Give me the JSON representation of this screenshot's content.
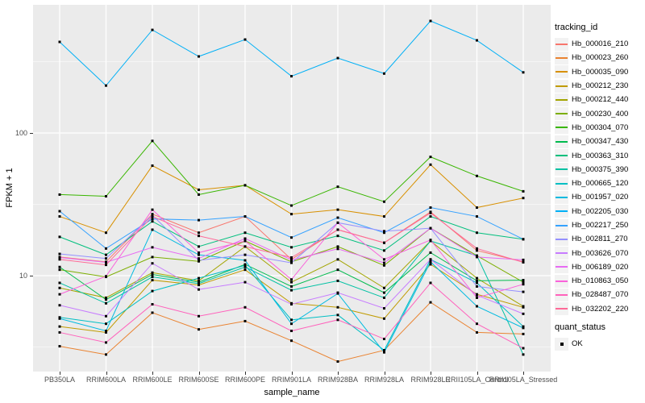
{
  "colors": {
    "panel_bg": "#EBEBEB",
    "grid": "#FFFFFF",
    "tick_label": "#4D4D4D",
    "legend_key_bg": "#F2F2F2",
    "point": "#000000"
  },
  "axis": {
    "y_title": "FPKM + 1",
    "x_title": "sample_name",
    "y_tick_labels": [
      "100",
      "10"
    ]
  },
  "legend": {
    "title": "tracking_id"
  },
  "legend2": {
    "title": "quant_status",
    "entries": [
      {
        "label": "OK",
        "marker": "black-square"
      }
    ]
  },
  "chart_data": {
    "type": "line",
    "title": "",
    "xlabel": "sample_name",
    "ylabel": "FPKM + 1",
    "y_scale": "log10",
    "ylim": [
      2.1,
      780
    ],
    "y_major_ticks": [
      10,
      100
    ],
    "y_minor_ticks": [
      3.162,
      31.62,
      316.2
    ],
    "grid": "on",
    "legend_position": "right",
    "point_marker": {
      "shape": "square",
      "color": "#000000",
      "size": 3
    },
    "categories": [
      "PB350LA",
      "RRIM600LA",
      "RRIM600LE",
      "RRIM600SE",
      "RRIM600PE",
      "RRIM901LA",
      "RRIM928BA",
      "RRIM928LA",
      "RRIM928LE",
      "RRII105LA_Control",
      "RRII105LA_Stressed"
    ],
    "series": [
      {
        "name": "Hb_000016_210",
        "color": "#F8766D",
        "values": [
          13.5,
          12.5,
          27,
          20,
          26,
          13,
          21,
          17,
          28,
          15,
          12.5
        ]
      },
      {
        "name": "Hb_000023_260",
        "color": "#EA8331",
        "values": [
          3.2,
          2.8,
          5.5,
          4.2,
          4.8,
          3.5,
          2.5,
          3.0,
          6.5,
          4.0,
          3.9
        ]
      },
      {
        "name": "Hb_000035_090",
        "color": "#D89000",
        "values": [
          26,
          20,
          59,
          40,
          43,
          27,
          29,
          26,
          60,
          30,
          35
        ]
      },
      {
        "name": "Hb_000212_230",
        "color": "#C09B00",
        "values": [
          4.4,
          4.0,
          9.3,
          8.6,
          11,
          6.4,
          6.0,
          5.0,
          12,
          7.4,
          6.0
        ]
      },
      {
        "name": "Hb_000212_440",
        "color": "#A3A500",
        "values": [
          8.2,
          7.0,
          10.5,
          9.2,
          16,
          9.0,
          13,
          8.2,
          17.5,
          9.6,
          6.1
        ]
      },
      {
        "name": "Hb_000230_400",
        "color": "#7CAE00",
        "values": [
          11,
          9.8,
          13.5,
          12.6,
          17.5,
          12.5,
          16,
          11.8,
          21.5,
          13.8,
          9.0
        ]
      },
      {
        "name": "Hb_000304_070",
        "color": "#39B600",
        "values": [
          37,
          36,
          88,
          37,
          43,
          31,
          42,
          33,
          68,
          50,
          39
        ]
      },
      {
        "name": "Hb_000347_430",
        "color": "#00BB4E",
        "values": [
          11.5,
          6.8,
          10.2,
          9.0,
          12,
          8.4,
          11,
          7.6,
          14.5,
          9.2,
          9.3
        ]
      },
      {
        "name": "Hb_000363_310",
        "color": "#00BF7D",
        "values": [
          18.7,
          14,
          24,
          16,
          20,
          15.8,
          19,
          15,
          26,
          20,
          18
        ]
      },
      {
        "name": "Hb_000375_390",
        "color": "#00C1A3",
        "values": [
          8.9,
          6.4,
          9.8,
          8.8,
          11.5,
          7.9,
          9.2,
          7.0,
          17.5,
          13.8,
          2.8
        ]
      },
      {
        "name": "Hb_000665_120",
        "color": "#00BFC4",
        "values": [
          5.1,
          4.6,
          7.8,
          9.6,
          11.8,
          4.9,
          5.3,
          3.0,
          13,
          8.9,
          4.4
        ]
      },
      {
        "name": "Hb_001957_020",
        "color": "#00BAE0",
        "values": [
          5.0,
          4.1,
          21,
          14,
          12.8,
          4.6,
          7.5,
          2.9,
          12.5,
          6.1,
          4.3
        ]
      },
      {
        "name": "Hb_002205_030",
        "color": "#00B0F6",
        "values": [
          435,
          215,
          528,
          344,
          452,
          250,
          335,
          261,
          610,
          446,
          266
        ]
      },
      {
        "name": "Hb_002217_250",
        "color": "#35A2FF",
        "values": [
          28.3,
          15.5,
          25,
          24.5,
          26,
          18.5,
          25.5,
          20,
          30,
          26,
          18
        ]
      },
      {
        "name": "Hb_002811_270",
        "color": "#9590FF",
        "values": [
          14.2,
          13.2,
          26.5,
          12.8,
          14,
          12.3,
          23.5,
          20.5,
          21.5,
          8.4,
          7.7
        ]
      },
      {
        "name": "Hb_003626_070",
        "color": "#C77CFF",
        "values": [
          6.2,
          5.2,
          12.2,
          8.0,
          9.0,
          6.3,
          7.6,
          5.9,
          13,
          7.3,
          5.4
        ]
      },
      {
        "name": "Hb_006189_020",
        "color": "#E76BF3",
        "values": [
          13.4,
          12.4,
          15.8,
          13.2,
          18.2,
          12.9,
          15.4,
          12.3,
          21.5,
          13.5,
          12.9
        ]
      },
      {
        "name": "Hb_010863_050",
        "color": "#FA62DB",
        "values": [
          7.4,
          9.9,
          29,
          14.5,
          17.5,
          9.4,
          23.5,
          13,
          17.8,
          7.0,
          8.7
        ]
      },
      {
        "name": "Hb_028487_070",
        "color": "#FF62BC",
        "values": [
          4.0,
          3.4,
          6.3,
          5.2,
          6.0,
          4.1,
          4.9,
          3.6,
          8.9,
          4.6,
          3.1
        ]
      },
      {
        "name": "Hb_032202_220",
        "color": "#FF6A98",
        "values": [
          13.0,
          11.9,
          26,
          19,
          16,
          13.4,
          21,
          17,
          27.5,
          15.5,
          12.4
        ]
      }
    ]
  }
}
